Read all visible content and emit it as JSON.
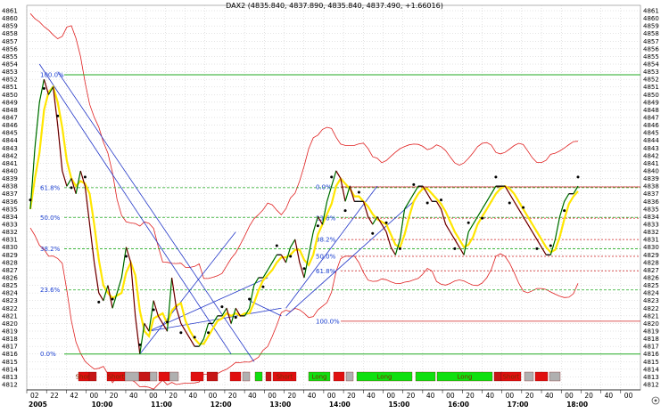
{
  "chart_data": {
    "type": "line",
    "title": "DAX2 (4835.840, 4837.890, 4835.840, 4837.490, +1.66016)",
    "instrument": "DAX2",
    "ylim": [
      4812,
      4861
    ],
    "y_ticks": [
      4812,
      4813,
      4814,
      4815,
      4816,
      4817,
      4818,
      4819,
      4820,
      4821,
      4822,
      4823,
      4824,
      4825,
      4826,
      4827,
      4828,
      4829,
      4830,
      4831,
      4832,
      4833,
      4834,
      4835,
      4836,
      4837,
      4838,
      4839,
      4840,
      4841,
      4842,
      4843,
      4844,
      4845,
      4846,
      4847,
      4848,
      4849,
      4850,
      4851,
      4852,
      4853,
      4854,
      4855,
      4856,
      4857,
      4858,
      4859,
      4860,
      4861
    ],
    "x_ticks_minor": [
      "02",
      "22",
      "42",
      "00",
      "20",
      "40",
      "00",
      "20",
      "40",
      "00",
      "20",
      "40",
      "00",
      "20",
      "40",
      "00",
      "20",
      "40",
      "00",
      "20",
      "40",
      "00",
      "20",
      "40",
      "00",
      "20",
      "40",
      "00",
      "20",
      "40",
      "00"
    ],
    "x_ticks_major": [
      "2005",
      "10:00",
      "11:00",
      "12:00",
      "13:00",
      "14:00",
      "15:00",
      "16:00",
      "17:00",
      "18:00"
    ],
    "grid": true,
    "colors": {
      "price": "#000000",
      "moving_average": "#ffe600",
      "bands": "#e02020",
      "fib_lines": "#22aa22",
      "trend_lines": "#2236c8",
      "dots": "#000000",
      "short": "#e01010",
      "long": "#10e010"
    },
    "series": [
      {
        "role": "price",
        "x": [
          0,
          1,
          2,
          3,
          4,
          5,
          6,
          7,
          8,
          9,
          10,
          11,
          12,
          13,
          14,
          15,
          16,
          17,
          18,
          19,
          20,
          21,
          22,
          23,
          24,
          25,
          26,
          27,
          28,
          29,
          30,
          31,
          32,
          33,
          34,
          35,
          36,
          37,
          38,
          39,
          40,
          41,
          42,
          43,
          44,
          45,
          46,
          47,
          48,
          49,
          50,
          51,
          52,
          53,
          54,
          55,
          56,
          57,
          58,
          59,
          60,
          61,
          62,
          63,
          64,
          65,
          66,
          67,
          68,
          69,
          70,
          71,
          72,
          73,
          74,
          75,
          76,
          77,
          78,
          79,
          80,
          81,
          82,
          83,
          84,
          85,
          86,
          87,
          88,
          89,
          90,
          91,
          92,
          93,
          94,
          95,
          96,
          97,
          98,
          99,
          100,
          101,
          102,
          103,
          104,
          105,
          106,
          107,
          108,
          109,
          110,
          111,
          112,
          113,
          114,
          115,
          116,
          117,
          118,
          119,
          120
        ],
        "values": [
          4835,
          4843,
          4849,
          4852,
          4850,
          4851,
          4846,
          4840,
          4838,
          4839,
          4837,
          4840,
          4838,
          4833,
          4828,
          4824,
          4823,
          4825,
          4822,
          4824,
          4826,
          4830,
          4828,
          4821,
          4816,
          4820,
          4819,
          4823,
          4821,
          4820,
          4819,
          4826,
          4822,
          4820,
          4819,
          4818,
          4817,
          4817,
          4818,
          4820,
          4820,
          4821,
          4821,
          4822,
          4820,
          4822,
          4821,
          4821,
          4822,
          4825,
          4826,
          4826,
          4827,
          4828,
          4829,
          4829,
          4828,
          4830,
          4831,
          4828,
          4826,
          4829,
          4832,
          4834,
          4833,
          4836,
          4838,
          4840,
          4839,
          4836,
          4838,
          4836,
          4836,
          4836,
          4834,
          4833,
          4834,
          4833,
          4832,
          4830,
          4829,
          4831,
          4835,
          4836,
          4837,
          4838,
          4838,
          4837,
          4836,
          4836,
          4835,
          4833,
          4832,
          4831,
          4830,
          4829,
          4832,
          4833,
          4834,
          4835,
          4836,
          4837,
          4838,
          4838,
          4838,
          4837,
          4836,
          4835,
          4834,
          4833,
          4832,
          4831,
          4830,
          4829,
          4829,
          4831,
          4834,
          4836,
          4837,
          4837,
          4838
        ]
      }
    ],
    "fibonacci_left": {
      "levels": [
        "100.0%",
        "61.8%",
        "50.0%",
        "38.2%",
        "23.6%",
        "0.0%"
      ],
      "prices": [
        4852.6,
        4837.8,
        4833.9,
        4829.8,
        4824.4,
        4816.0
      ]
    },
    "fibonacci_right": {
      "levels": [
        "0.0%",
        "23.6%",
        "38.2%",
        "50.0%",
        "61.8%",
        "100.0%"
      ],
      "prices": [
        4837.9,
        4833.8,
        4831.0,
        4828.8,
        4826.9,
        4820.3
      ]
    },
    "signals": [
      {
        "label": "Short",
        "type": "short"
      },
      {
        "label": "Short",
        "type": "short"
      },
      {
        "label": "Short",
        "type": "short"
      },
      {
        "label": "Long",
        "type": "long"
      },
      {
        "label": "Long",
        "type": "long"
      },
      {
        "label": "Long",
        "type": "long"
      },
      {
        "label": "Short",
        "type": "short"
      }
    ]
  }
}
